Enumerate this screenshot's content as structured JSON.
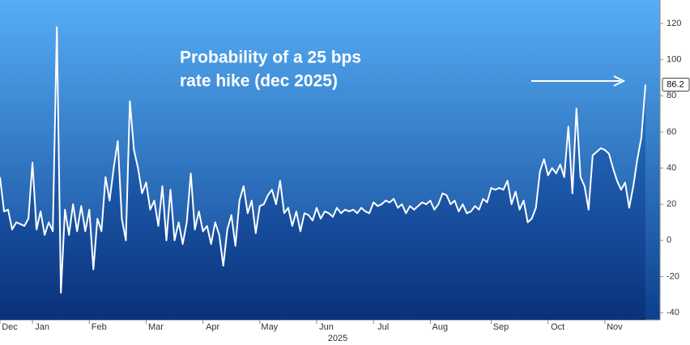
{
  "chart_data": {
    "type": "line",
    "annotation": [
      "Probability of a 25 bps",
      "rate hike (dec 2025)"
    ],
    "year_label": "2025",
    "categories": [
      "Dec",
      null,
      null,
      null,
      null,
      null,
      null,
      null,
      "Jan",
      null,
      null,
      null,
      null,
      null,
      null,
      null,
      null,
      null,
      null,
      null,
      null,
      null,
      "Feb",
      null,
      null,
      null,
      null,
      null,
      null,
      null,
      null,
      null,
      null,
      null,
      null,
      null,
      "Mar",
      null,
      null,
      null,
      null,
      null,
      null,
      null,
      null,
      null,
      null,
      null,
      null,
      null,
      "Apr",
      null,
      null,
      null,
      null,
      null,
      null,
      null,
      null,
      null,
      null,
      null,
      null,
      null,
      "May",
      null,
      null,
      null,
      null,
      null,
      null,
      null,
      null,
      null,
      null,
      null,
      null,
      null,
      "Jun",
      null,
      null,
      null,
      null,
      null,
      null,
      null,
      null,
      null,
      null,
      null,
      null,
      null,
      "Jul",
      null,
      null,
      null,
      null,
      null,
      null,
      null,
      null,
      null,
      null,
      null,
      null,
      null,
      "Aug",
      null,
      null,
      null,
      null,
      null,
      null,
      null,
      null,
      null,
      null,
      null,
      null,
      null,
      null,
      "Sep",
      null,
      null,
      null,
      null,
      null,
      null,
      null,
      null,
      null,
      null,
      null,
      null,
      null,
      "Oct",
      null,
      null,
      null,
      null,
      null,
      null,
      null,
      null,
      null,
      null,
      null,
      null,
      null,
      "Nov",
      null,
      null,
      null,
      null,
      null,
      null,
      null,
      null,
      null,
      null
    ],
    "series": [
      {
        "name": "Probability of a 25 bps rate hike",
        "color": "#ffffff",
        "values": [
          35,
          16,
          17,
          6,
          10,
          9,
          8,
          12,
          43,
          6,
          16,
          3,
          10,
          5,
          118,
          -29,
          17,
          3,
          20,
          5,
          19,
          5,
          17,
          -16,
          12,
          5,
          35,
          22,
          40,
          55,
          12,
          0,
          77,
          50,
          40,
          26,
          32,
          17,
          22,
          8,
          30,
          0,
          28,
          0,
          10,
          -2,
          10,
          37,
          6,
          16,
          5,
          8,
          -2,
          10,
          3,
          -14,
          6,
          14,
          -3,
          22,
          30,
          15,
          22,
          4,
          19,
          20,
          25,
          28,
          20,
          33,
          15,
          18,
          8,
          16,
          5,
          15,
          14,
          11,
          18,
          12,
          16,
          15,
          13,
          18,
          15,
          17,
          16,
          17,
          15,
          18,
          16,
          15,
          21,
          19,
          20,
          22,
          21,
          23,
          18,
          20,
          15,
          19,
          17,
          19,
          21,
          20,
          22,
          17,
          20,
          26,
          25,
          20,
          22,
          16,
          20,
          15,
          16,
          19,
          17,
          23,
          21,
          29,
          28,
          29,
          28,
          33,
          20,
          27,
          17,
          22,
          10,
          12,
          18,
          38,
          45,
          36,
          40,
          37,
          42,
          35,
          63,
          26,
          73,
          35,
          30,
          17,
          47,
          49,
          51,
          50,
          48,
          40,
          33,
          28,
          32,
          18,
          30,
          45,
          57,
          86.2
        ]
      }
    ],
    "ylim": [
      -44,
      133
    ],
    "yticks": [
      -40,
      -20,
      0,
      20,
      40,
      60,
      80,
      100,
      120
    ]
  }
}
